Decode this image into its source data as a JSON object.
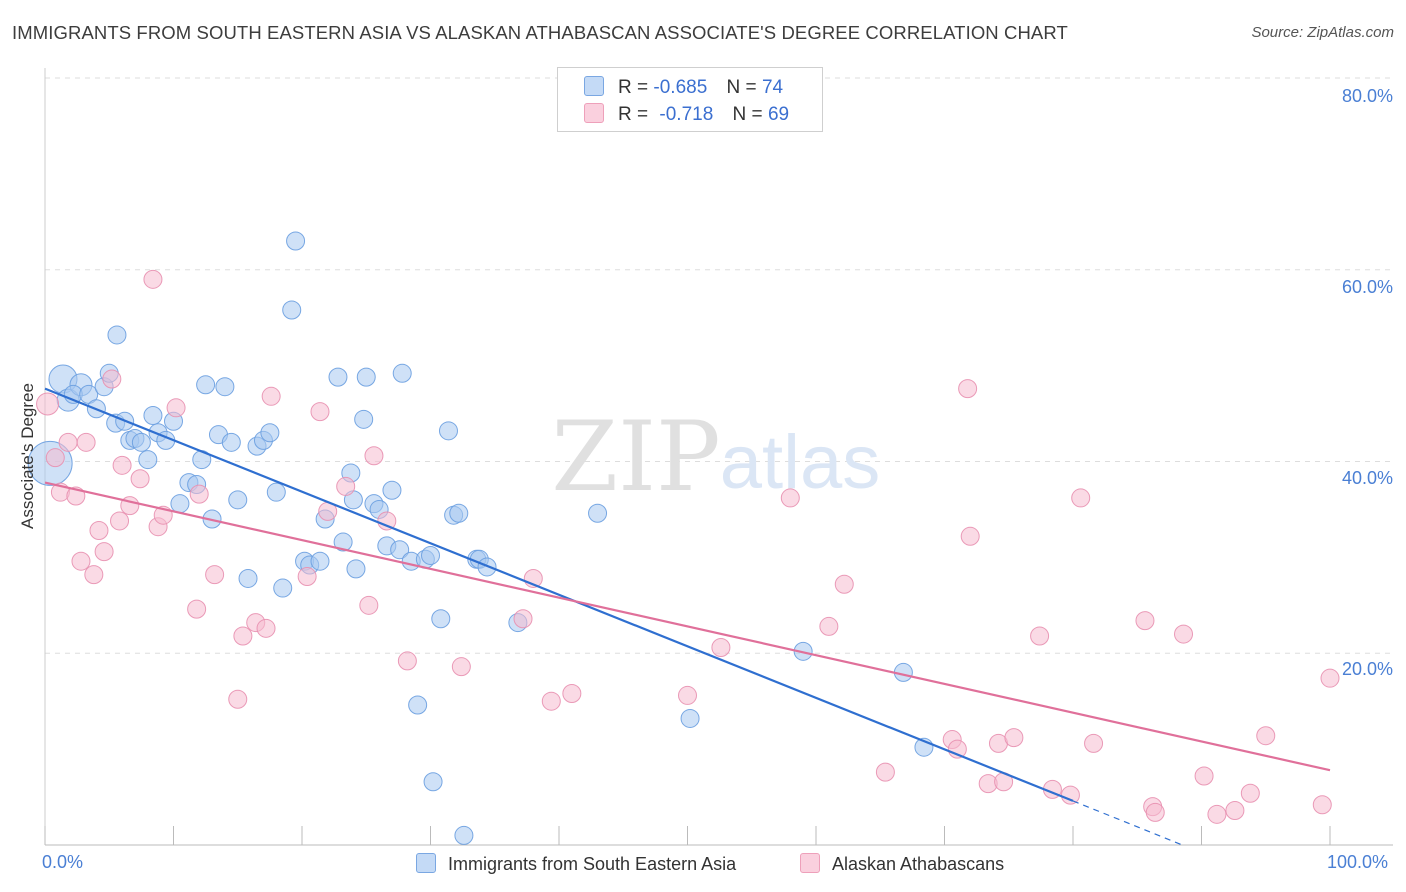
{
  "title": "IMMIGRANTS FROM SOUTH EASTERN ASIA VS ALASKAN ATHABASCAN ASSOCIATE'S DEGREE CORRELATION CHART",
  "source": "Source: ZipAtlas.com",
  "watermark": {
    "zip": "ZIP",
    "atlas": "atlas"
  },
  "legend": {
    "r_label": "R =",
    "n_label": "N =",
    "rows": [
      {
        "r": "-0.685",
        "n": "74"
      },
      {
        "r": "-0.718",
        "n": "69"
      }
    ]
  },
  "colors": {
    "blue_fill": "#a8c8f0",
    "blue_stroke": "#6a9ee0",
    "blue_line": "#2f6fd0",
    "pink_fill": "#f6bcd0",
    "pink_stroke": "#e890b0",
    "pink_line": "#e0709a",
    "tick_text": "#4a7fd4",
    "grid": "#dddddd"
  },
  "chart_data": {
    "type": "scatter",
    "title": "IMMIGRANTS FROM SOUTH EASTERN ASIA VS ALASKAN ATHABASCAN ASSOCIATE'S DEGREE CORRELATION CHART",
    "xlabel": "",
    "ylabel": "Associate's Degree",
    "xlim": [
      0,
      105
    ],
    "ylim": [
      0,
      80
    ],
    "x_tick_labels": [
      "0.0%",
      "100.0%"
    ],
    "y_ticks": [
      20,
      40,
      60,
      80
    ],
    "y_tick_labels": [
      "20.0%",
      "40.0%",
      "60.0%",
      "80.0%"
    ],
    "grid": true,
    "legend_position": "top-center",
    "series": [
      {
        "name": "Immigrants from South Eastern Asia",
        "r": -0.685,
        "n": 74,
        "trend": {
          "x": [
            0,
            80
          ],
          "y": [
            47.6,
            4.6
          ],
          "dash_to": [
            88.5,
            0
          ]
        },
        "points": [
          [
            0.4,
            39.8,
            22
          ],
          [
            1.4,
            48.6,
            14
          ],
          [
            1.8,
            46.4,
            11
          ],
          [
            2.8,
            48.0,
            11
          ],
          [
            2.2,
            47.0,
            9
          ],
          [
            3.4,
            47.0,
            9
          ],
          [
            4.0,
            45.5,
            9
          ],
          [
            4.6,
            47.8,
            9
          ],
          [
            5.0,
            49.2,
            9
          ],
          [
            5.5,
            44.0,
            9
          ],
          [
            5.6,
            53.2,
            9
          ],
          [
            6.2,
            44.2,
            9
          ],
          [
            6.6,
            42.2,
            9
          ],
          [
            7.0,
            42.4,
            9
          ],
          [
            7.5,
            42.0,
            9
          ],
          [
            8.0,
            40.2,
            9
          ],
          [
            8.4,
            44.8,
            9
          ],
          [
            8.8,
            43.0,
            9
          ],
          [
            9.4,
            42.2,
            9
          ],
          [
            10.0,
            44.2,
            9
          ],
          [
            10.5,
            35.6,
            9
          ],
          [
            11.2,
            37.8,
            9
          ],
          [
            11.8,
            37.6,
            9
          ],
          [
            12.2,
            40.2,
            9
          ],
          [
            12.5,
            48.0,
            9
          ],
          [
            13.0,
            34.0,
            9
          ],
          [
            13.5,
            42.8,
            9
          ],
          [
            14.0,
            47.8,
            9
          ],
          [
            14.5,
            42.0,
            9
          ],
          [
            15.0,
            36.0,
            9
          ],
          [
            15.8,
            27.8,
            9
          ],
          [
            16.5,
            41.6,
            9
          ],
          [
            17.0,
            42.2,
            9
          ],
          [
            17.5,
            43.0,
            9
          ],
          [
            18.0,
            36.8,
            9
          ],
          [
            18.5,
            26.8,
            9
          ],
          [
            19.2,
            55.8,
            9
          ],
          [
            19.5,
            63.0,
            9
          ],
          [
            20.2,
            29.6,
            9
          ],
          [
            20.6,
            29.2,
            9
          ],
          [
            21.4,
            29.6,
            9
          ],
          [
            21.8,
            34.0,
            9
          ],
          [
            22.8,
            48.8,
            9
          ],
          [
            23.2,
            31.6,
            9
          ],
          [
            23.8,
            38.8,
            9
          ],
          [
            24.0,
            36.0,
            9
          ],
          [
            24.2,
            28.8,
            9
          ],
          [
            24.8,
            44.4,
            9
          ],
          [
            25.0,
            48.8,
            9
          ],
          [
            25.6,
            35.6,
            9
          ],
          [
            26.0,
            35.0,
            9
          ],
          [
            26.6,
            31.2,
            9
          ],
          [
            27.0,
            37.0,
            9
          ],
          [
            27.6,
            30.8,
            9
          ],
          [
            27.8,
            49.2,
            9
          ],
          [
            28.5,
            29.6,
            9
          ],
          [
            29.0,
            14.6,
            9
          ],
          [
            29.6,
            29.8,
            9
          ],
          [
            30.0,
            30.2,
            9
          ],
          [
            30.2,
            6.6,
            9
          ],
          [
            30.8,
            23.6,
            9
          ],
          [
            31.4,
            43.2,
            9
          ],
          [
            31.8,
            34.4,
            9
          ],
          [
            32.2,
            34.6,
            9
          ],
          [
            32.6,
            1.0,
            9
          ],
          [
            33.6,
            29.8,
            9
          ],
          [
            33.8,
            29.8,
            9
          ],
          [
            34.4,
            29.0,
            9
          ],
          [
            36.8,
            23.2,
            9
          ],
          [
            43.0,
            34.6,
            9
          ],
          [
            50.2,
            13.2,
            9
          ],
          [
            59.0,
            20.2,
            9
          ],
          [
            66.8,
            18.0,
            9
          ],
          [
            68.4,
            10.2,
            9
          ]
        ]
      },
      {
        "name": "Alaskan Athabascans",
        "r": -0.718,
        "n": 69,
        "trend": {
          "x": [
            0,
            100
          ],
          "y": [
            37.8,
            7.8
          ]
        },
        "points": [
          [
            0.2,
            46.0,
            11
          ],
          [
            0.8,
            40.4,
            9
          ],
          [
            1.2,
            36.8,
            9
          ],
          [
            1.8,
            42.0,
            9
          ],
          [
            2.4,
            36.4,
            9
          ],
          [
            2.8,
            29.6,
            9
          ],
          [
            3.2,
            42.0,
            9
          ],
          [
            3.8,
            28.2,
            9
          ],
          [
            4.2,
            32.8,
            9
          ],
          [
            4.6,
            30.6,
            9
          ],
          [
            5.2,
            48.6,
            9
          ],
          [
            5.8,
            33.8,
            9
          ],
          [
            6.0,
            39.6,
            9
          ],
          [
            6.6,
            35.4,
            9
          ],
          [
            7.4,
            38.2,
            9
          ],
          [
            8.4,
            59.0,
            9
          ],
          [
            8.8,
            33.2,
            9
          ],
          [
            9.2,
            34.4,
            9
          ],
          [
            10.2,
            45.6,
            9
          ],
          [
            11.8,
            24.6,
            9
          ],
          [
            12.0,
            36.6,
            9
          ],
          [
            13.2,
            28.2,
            9
          ],
          [
            15.0,
            15.2,
            9
          ],
          [
            15.4,
            21.8,
            9
          ],
          [
            16.4,
            23.2,
            9
          ],
          [
            17.2,
            22.6,
            9
          ],
          [
            17.6,
            46.8,
            9
          ],
          [
            20.4,
            28.0,
            9
          ],
          [
            21.4,
            45.2,
            9
          ],
          [
            22.0,
            34.8,
            9
          ],
          [
            23.4,
            37.4,
            9
          ],
          [
            25.2,
            25.0,
            9
          ],
          [
            25.6,
            40.6,
            9
          ],
          [
            26.6,
            33.8,
            9
          ],
          [
            28.2,
            19.2,
            9
          ],
          [
            32.4,
            18.6,
            9
          ],
          [
            37.2,
            23.6,
            9
          ],
          [
            38.0,
            27.8,
            9
          ],
          [
            39.4,
            15.0,
            9
          ],
          [
            41.0,
            15.8,
            9
          ],
          [
            50.0,
            15.6,
            9
          ],
          [
            52.6,
            20.6,
            9
          ],
          [
            58.0,
            36.2,
            9
          ],
          [
            61.0,
            22.8,
            9
          ],
          [
            62.2,
            27.2,
            9
          ],
          [
            65.4,
            7.6,
            9
          ],
          [
            70.6,
            11.0,
            9
          ],
          [
            71.0,
            10.0,
            9
          ],
          [
            71.8,
            47.6,
            9
          ],
          [
            72.0,
            32.2,
            9
          ],
          [
            73.4,
            6.4,
            9
          ],
          [
            74.2,
            10.6,
            9
          ],
          [
            74.6,
            6.6,
            9
          ],
          [
            75.4,
            11.2,
            9
          ],
          [
            77.4,
            21.8,
            9
          ],
          [
            78.4,
            5.8,
            9
          ],
          [
            79.8,
            5.2,
            9
          ],
          [
            80.6,
            36.2,
            9
          ],
          [
            81.6,
            10.6,
            9
          ],
          [
            85.6,
            23.4,
            9
          ],
          [
            86.2,
            4.0,
            9
          ],
          [
            86.4,
            3.4,
            9
          ],
          [
            88.6,
            22.0,
            9
          ],
          [
            90.2,
            7.2,
            9
          ],
          [
            91.2,
            3.2,
            9
          ],
          [
            92.6,
            3.6,
            9
          ],
          [
            93.8,
            5.4,
            9
          ],
          [
            95.0,
            11.4,
            9
          ],
          [
            99.4,
            4.2,
            9
          ],
          [
            100.0,
            17.4,
            9
          ]
        ]
      }
    ]
  }
}
